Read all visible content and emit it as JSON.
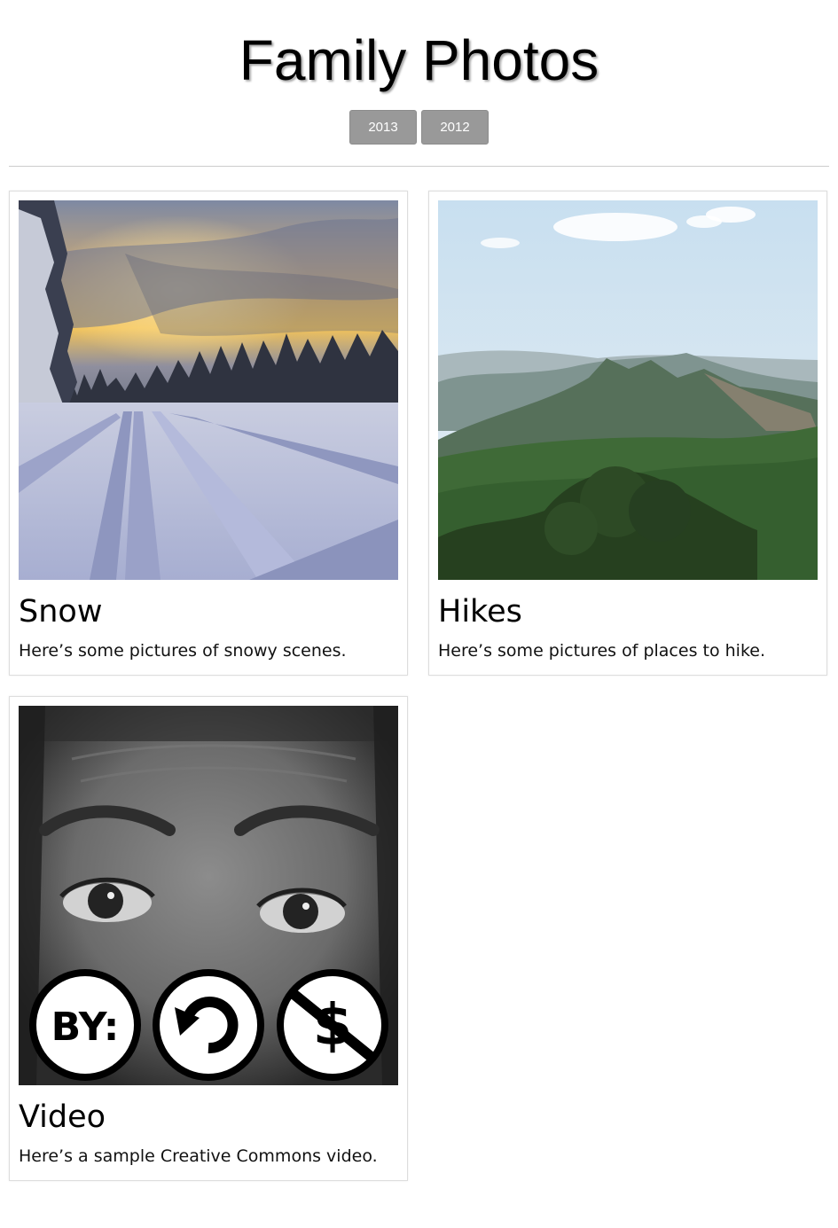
{
  "header": {
    "title": "Family Photos",
    "years": [
      "2013",
      "2012"
    ]
  },
  "albums": [
    {
      "title": "Snow",
      "description": "Here’s some pictures of snowy scenes.",
      "thumbnail": "snowy-road-sunset-photo"
    },
    {
      "title": "Hikes",
      "description": "Here’s some pictures of places to hike.",
      "thumbnail": "forested-mountain-landscape-photo"
    },
    {
      "title": "Video",
      "description": "Here’s a sample Creative Commons video.",
      "thumbnail": "face-with-creative-commons-icons",
      "license_icons": [
        "BY:",
        "share-alike-icon",
        "non-commercial-icon"
      ]
    }
  ],
  "colors": {
    "year_button_bg": "#999999",
    "year_button_text": "#ffffff",
    "card_border": "#dddddd",
    "divider": "#cccccc"
  }
}
